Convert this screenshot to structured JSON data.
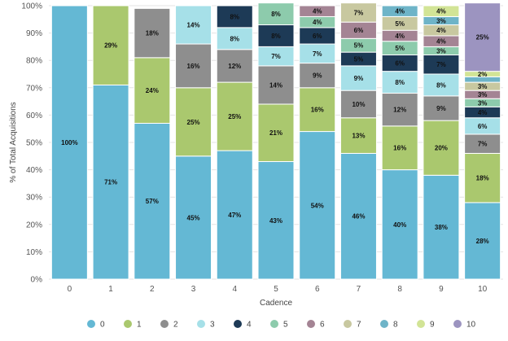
{
  "chart_data": {
    "type": "bar",
    "stacked": true,
    "xlabel": "Cadence",
    "ylabel": "% of Total Acquisitions",
    "ylim": [
      0,
      100
    ],
    "yticks": [
      "0%",
      "10%",
      "20%",
      "30%",
      "40%",
      "50%",
      "60%",
      "70%",
      "80%",
      "90%",
      "100%"
    ],
    "categories": [
      "0",
      "1",
      "2",
      "3",
      "4",
      "5",
      "6",
      "7",
      "8",
      "9",
      "10"
    ],
    "legend_position": "bottom",
    "series": [
      {
        "name": "0",
        "color": "#64b8d4",
        "values": [
          100,
          71,
          57,
          45,
          47,
          43,
          54,
          46,
          40,
          38,
          28
        ],
        "labels": [
          "100%",
          "71%",
          "57%",
          "45%",
          "47%",
          "43%",
          "54%",
          "46%",
          "40%",
          "38%",
          "28%"
        ]
      },
      {
        "name": "1",
        "color": "#aac86e",
        "values": [
          0,
          29,
          24,
          25,
          25,
          21,
          16,
          13,
          16,
          20,
          18
        ],
        "labels": [
          "",
          "29%",
          "24%",
          "25%",
          "25%",
          "21%",
          "16%",
          "13%",
          "16%",
          "20%",
          "18%"
        ]
      },
      {
        "name": "2",
        "color": "#8e8e8e",
        "values": [
          0,
          0,
          18,
          16,
          12,
          14,
          9,
          10,
          12,
          9,
          7
        ],
        "labels": [
          "",
          "",
          "18%",
          "16%",
          "12%",
          "14%",
          "9%",
          "10%",
          "12%",
          "9%",
          "7%"
        ]
      },
      {
        "name": "3",
        "color": "#a6e0e8",
        "values": [
          0,
          0,
          0,
          14,
          8,
          7,
          7,
          9,
          8,
          8,
          6
        ],
        "labels": [
          "",
          "",
          "",
          "14%",
          "8%",
          "7%",
          "7%",
          "9%",
          "8%",
          "8%",
          "6%"
        ]
      },
      {
        "name": "4",
        "color": "#1d3a56",
        "values": [
          0,
          0,
          0,
          0,
          8,
          8,
          6,
          5,
          6,
          7,
          4
        ],
        "labels": [
          "",
          "",
          "",
          "",
          "8%",
          "8%",
          "6%",
          "5%",
          "6%",
          "7%",
          "4%"
        ]
      },
      {
        "name": "5",
        "color": "#8dcbac",
        "values": [
          0,
          0,
          0,
          0,
          0,
          8,
          4,
          5,
          5,
          3,
          3
        ],
        "labels": [
          "",
          "",
          "",
          "",
          "",
          "8%",
          "4%",
          "5%",
          "5%",
          "3%",
          "3%"
        ]
      },
      {
        "name": "6",
        "color": "#a48494",
        "values": [
          0,
          0,
          0,
          0,
          0,
          0,
          4,
          6,
          4,
          4,
          3
        ],
        "labels": [
          "",
          "",
          "",
          "",
          "",
          "",
          "4%",
          "6%",
          "4%",
          "4%",
          "3%"
        ]
      },
      {
        "name": "7",
        "color": "#c8c8a0",
        "values": [
          0,
          0,
          0,
          0,
          0,
          0,
          0,
          7,
          5,
          4,
          3
        ],
        "labels": [
          "",
          "",
          "",
          "",
          "",
          "",
          "",
          "7%",
          "5%",
          "4%",
          "3%"
        ]
      },
      {
        "name": "8",
        "color": "#6eb4c8",
        "values": [
          0,
          0,
          0,
          0,
          0,
          0,
          0,
          0,
          4,
          3,
          2
        ],
        "labels": [
          "",
          "",
          "",
          "",
          "",
          "",
          "",
          "",
          "4%",
          "3%",
          ""
        ]
      },
      {
        "name": "9",
        "color": "#d2e496",
        "values": [
          0,
          0,
          0,
          0,
          0,
          0,
          0,
          0,
          0,
          4,
          2
        ],
        "labels": [
          "",
          "",
          "",
          "",
          "",
          "",
          "",
          "",
          "",
          "4%",
          "2%"
        ]
      },
      {
        "name": "10",
        "color": "#9c94c0",
        "values": [
          0,
          0,
          0,
          0,
          0,
          0,
          0,
          0,
          0,
          0,
          25
        ],
        "labels": [
          "",
          "",
          "",
          "",
          "",
          "",
          "",
          "",
          "",
          "",
          "25%"
        ]
      }
    ]
  }
}
